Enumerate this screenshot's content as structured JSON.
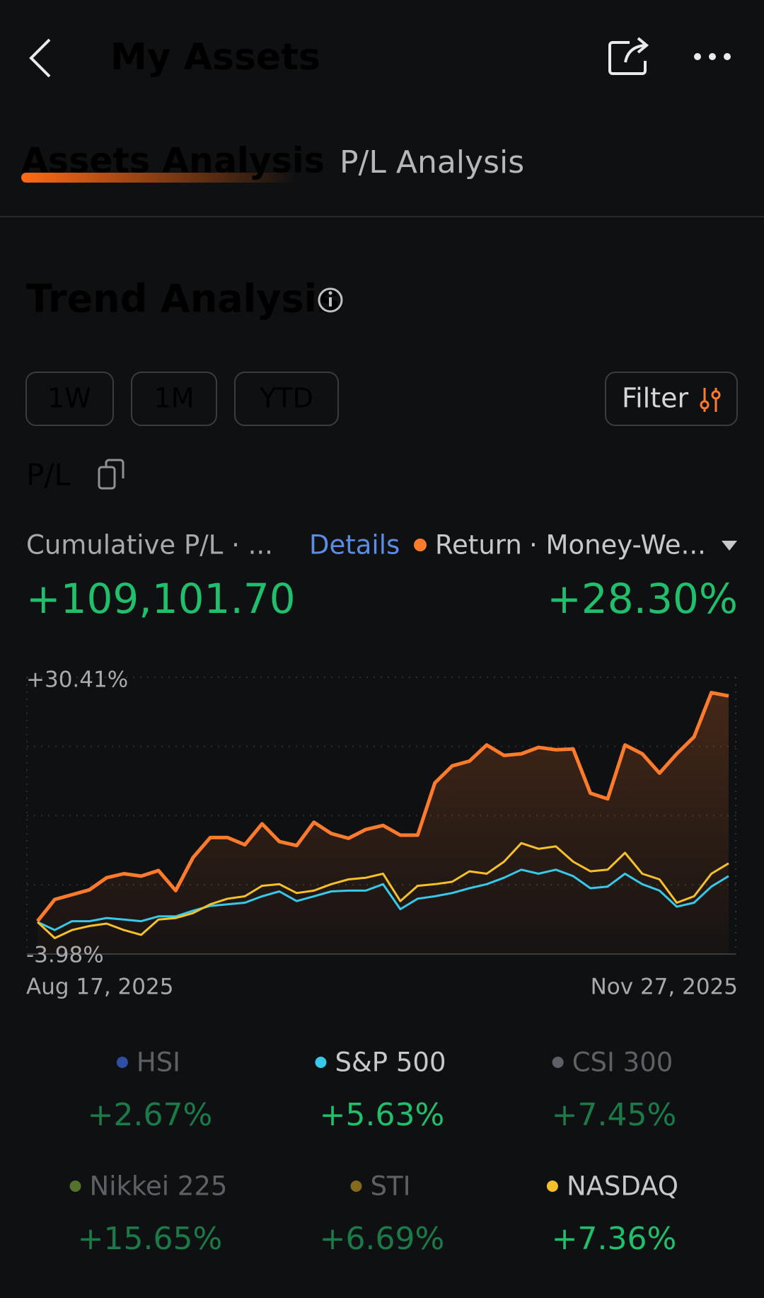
{
  "header": {
    "title": "My Assets"
  },
  "tabs": [
    "Assets Analysis",
    "P/L Analysis"
  ],
  "section": {
    "title": "Trend Analysis",
    "periods": [
      "1W",
      "1M",
      "YTD"
    ],
    "filter": "Filter",
    "metric": "P/L"
  },
  "summary": {
    "cumulative_label": "Cumulative P/L · ...",
    "details": "Details",
    "return_label": "Return",
    "basis": "· Money-We...",
    "pl": 109101.7,
    "pl_label": "+109,101.70",
    "return": 28.3,
    "return_value_label": "+28.30%"
  },
  "chart_data": {
    "type": "line",
    "categories": [
      "Aug 17, 2025",
      null,
      null,
      null,
      null,
      null,
      null,
      null,
      null,
      null,
      null,
      null,
      null,
      null,
      null,
      null,
      null,
      null,
      null,
      null,
      null,
      null,
      null,
      null,
      null,
      null,
      null,
      null,
      null,
      null,
      null,
      null,
      null,
      null,
      null,
      null,
      null,
      null,
      null,
      null,
      "Nov 27, 2025"
    ],
    "ylim": [
      -3.98,
      30.41
    ],
    "yticks": [
      {
        "value": 30.41,
        "label": "+30.41%"
      },
      {
        "value": -3.98,
        "label": "-3.98%"
      }
    ],
    "grid": true,
    "series": [
      {
        "name": "Return",
        "color": "#ff7b2c",
        "values": [
          0.1,
          2.8,
          3.4,
          4.0,
          5.5,
          6.0,
          5.7,
          6.4,
          3.9,
          8.0,
          10.5,
          10.5,
          9.6,
          12.2,
          10.0,
          9.5,
          12.4,
          11.0,
          10.4,
          11.5,
          12.0,
          10.8,
          10.8,
          17.3,
          19.4,
          20.0,
          22.0,
          20.7,
          20.9,
          21.7,
          21.4,
          21.5,
          16.0,
          15.3,
          22.0,
          20.9,
          18.5,
          20.9,
          23.0,
          28.5,
          28.1
        ]
      }
    ],
    "benchmarks": [
      {
        "name": "HSI",
        "color": "#2f4fa6",
        "change": 2.67,
        "change_label": "+2.67%",
        "selected": false
      },
      {
        "name": "S&P 500",
        "color": "#38c8ea",
        "change": 5.63,
        "change_label": "+5.63%",
        "selected": true,
        "values": [
          0,
          -1.0,
          0.1,
          0.1,
          0.5,
          0.3,
          0.1,
          0.7,
          0.7,
          1.4,
          2.0,
          2.2,
          2.4,
          3.2,
          3.8,
          2.6,
          3.2,
          3.8,
          3.9,
          3.9,
          4.7,
          1.6,
          2.9,
          3.2,
          3.6,
          4.2,
          4.7,
          5.5,
          6.5,
          6.0,
          6.5,
          5.7,
          4.2,
          4.4,
          6.0,
          4.7,
          3.9,
          1.9,
          2.4,
          4.4,
          5.7
        ]
      },
      {
        "name": "CSI 300",
        "color": "#5d6066",
        "change": 7.45,
        "change_label": "+7.45%",
        "selected": false
      },
      {
        "name": "Nikkei 225",
        "color": "#56732b",
        "change": 15.65,
        "change_label": "+15.65%",
        "selected": false
      },
      {
        "name": "STI",
        "color": "#846a1c",
        "change": 6.69,
        "change_label": "+6.69%",
        "selected": false
      },
      {
        "name": "NASDAQ",
        "color": "#f5c02a",
        "change": 7.36,
        "change_label": "+7.36%",
        "selected": true,
        "values": [
          0,
          -2.0,
          -1.0,
          -0.5,
          -0.2,
          -1.0,
          -1.6,
          0.3,
          0.5,
          1.1,
          2.2,
          2.9,
          3.2,
          4.5,
          4.7,
          3.6,
          3.9,
          4.7,
          5.3,
          5.5,
          6.0,
          2.6,
          4.5,
          4.7,
          5.0,
          6.3,
          6.0,
          7.5,
          9.8,
          9.1,
          9.4,
          7.5,
          6.3,
          6.5,
          8.6,
          6.0,
          5.3,
          2.4,
          3.2,
          6.0,
          7.3
        ]
      }
    ]
  }
}
